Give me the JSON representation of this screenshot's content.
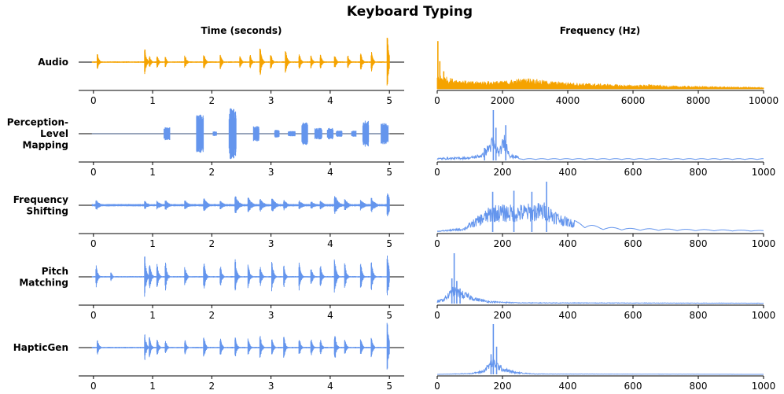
{
  "figure_title": "Keyboard Typing",
  "column_titles": [
    "Time (seconds)",
    "Frequency (Hz)"
  ],
  "chart_data": [
    {
      "type": "line",
      "panel": "waveform",
      "row": "Audio",
      "color": "#f5a300",
      "xlabel": "",
      "xlim": [
        -0.25,
        5.25
      ],
      "xticks": [
        0,
        1,
        2,
        3,
        4,
        5
      ],
      "ylim": [
        -1,
        1
      ],
      "clicks": [
        0.07,
        0.87,
        0.95,
        1.08,
        1.22,
        1.55,
        1.87,
        2.15,
        2.48,
        2.65,
        2.82,
        3.0,
        3.25,
        3.48,
        3.68,
        3.84,
        4.08,
        4.3,
        4.52,
        4.7,
        4.97
      ],
      "amps": [
        0.35,
        0.6,
        0.25,
        0.25,
        0.2,
        0.3,
        0.35,
        0.3,
        0.25,
        0.3,
        0.6,
        0.3,
        0.5,
        0.35,
        0.3,
        0.3,
        0.3,
        0.3,
        0.35,
        0.4,
        1.0
      ]
    },
    {
      "type": "line",
      "panel": "spectrum",
      "row": "Audio",
      "color": "#f5a300",
      "xlim": [
        0,
        10000
      ],
      "xticks": [
        0,
        2000,
        4000,
        6000,
        8000,
        10000
      ],
      "peaks": [
        {
          "x": 20,
          "h": 0.95
        },
        {
          "x": 80,
          "h": 0.55
        },
        {
          "x": 200,
          "h": 0.35
        }
      ],
      "profile": [
        [
          0,
          0.3
        ],
        [
          400,
          0.22
        ],
        [
          1000,
          0.15
        ],
        [
          2000,
          0.16
        ],
        [
          2800,
          0.22
        ],
        [
          3500,
          0.15
        ],
        [
          4000,
          0.13
        ],
        [
          5000,
          0.1
        ],
        [
          6000,
          0.07
        ],
        [
          6500,
          0.09
        ],
        [
          7000,
          0.06
        ],
        [
          8000,
          0.05
        ],
        [
          9000,
          0.04
        ],
        [
          10000,
          0.03
        ]
      ]
    },
    {
      "type": "line",
      "panel": "waveform",
      "row": "Perception-Level Mapping",
      "color": "#6495ed",
      "xlim": [
        -0.25,
        5.25
      ],
      "xticks": [
        0,
        1,
        2,
        3,
        4,
        5
      ],
      "ylim": [
        -1,
        1
      ],
      "bursts": [
        [
          1.24,
          0.1,
          0.25
        ],
        [
          1.8,
          0.12,
          0.75
        ],
        [
          2.35,
          0.12,
          1.0
        ],
        [
          2.75,
          0.1,
          0.3
        ],
        [
          2.05,
          0.06,
          0.1
        ],
        [
          3.1,
          0.08,
          0.15
        ],
        [
          3.35,
          0.12,
          0.1
        ],
        [
          3.57,
          0.1,
          0.45
        ],
        [
          3.8,
          0.12,
          0.22
        ],
        [
          4.0,
          0.1,
          0.22
        ],
        [
          4.15,
          0.1,
          0.12
        ],
        [
          4.4,
          0.08,
          0.12
        ],
        [
          4.6,
          0.1,
          0.5
        ],
        [
          4.92,
          0.12,
          0.42
        ]
      ]
    },
    {
      "type": "line",
      "panel": "spectrum",
      "row": "Perception-Level Mapping",
      "color": "#6495ed",
      "xlim": [
        0,
        1000
      ],
      "xticks": [
        0,
        200,
        400,
        600,
        800,
        1000
      ],
      "peaks": [
        {
          "x": 172,
          "h": 1.0
        },
        {
          "x": 180,
          "h": 0.65
        },
        {
          "x": 210,
          "h": 0.7
        },
        {
          "x": 145,
          "h": 0.25
        }
      ],
      "profile": [
        [
          0,
          0.05
        ],
        [
          100,
          0.07
        ],
        [
          140,
          0.15
        ],
        [
          170,
          0.5
        ],
        [
          190,
          0.2
        ],
        [
          205,
          0.55
        ],
        [
          225,
          0.12
        ],
        [
          300,
          0.05
        ],
        [
          500,
          0.03
        ],
        [
          1000,
          0.02
        ]
      ]
    },
    {
      "type": "line",
      "panel": "waveform",
      "row": "Frequency Shifting",
      "color": "#6495ed",
      "xlim": [
        -0.25,
        5.25
      ],
      "xticks": [
        0,
        1,
        2,
        3,
        4,
        5
      ],
      "ylim": [
        -1,
        1
      ],
      "clicks": [
        0.05,
        0.35,
        0.87,
        1.08,
        1.22,
        1.55,
        1.87,
        2.15,
        2.4,
        2.62,
        2.82,
        3.02,
        3.22,
        3.48,
        3.68,
        3.84,
        4.08,
        4.25,
        4.52,
        4.7,
        4.97
      ],
      "amps": [
        0.35,
        0.1,
        0.3,
        0.3,
        0.35,
        0.35,
        0.45,
        0.3,
        0.65,
        0.5,
        0.45,
        0.5,
        0.35,
        0.35,
        0.3,
        0.3,
        0.7,
        0.4,
        0.4,
        0.5,
        1.0
      ]
    },
    {
      "type": "line",
      "panel": "spectrum",
      "row": "Frequency Shifting",
      "color": "#6495ed",
      "xlim": [
        0,
        1000
      ],
      "xticks": [
        0,
        200,
        400,
        600,
        800,
        1000
      ],
      "peaks": [
        {
          "x": 170,
          "h": 0.8
        },
        {
          "x": 235,
          "h": 0.82
        },
        {
          "x": 335,
          "h": 1.0
        },
        {
          "x": 290,
          "h": 0.8
        }
      ],
      "profile": [
        [
          0,
          0.02
        ],
        [
          80,
          0.08
        ],
        [
          120,
          0.3
        ],
        [
          170,
          0.55
        ],
        [
          240,
          0.55
        ],
        [
          330,
          0.6
        ],
        [
          380,
          0.35
        ],
        [
          430,
          0.2
        ],
        [
          500,
          0.1
        ],
        [
          600,
          0.07
        ],
        [
          800,
          0.05
        ],
        [
          1000,
          0.03
        ]
      ]
    },
    {
      "type": "line",
      "panel": "waveform",
      "row": "Pitch Matching",
      "color": "#6495ed",
      "xlim": [
        -0.25,
        5.25
      ],
      "xticks": [
        0,
        1,
        2,
        3,
        4,
        5
      ],
      "ylim": [
        -1,
        1
      ],
      "clicks": [
        0.05,
        0.3,
        0.87,
        0.95,
        1.08,
        1.22,
        1.55,
        1.87,
        2.15,
        2.4,
        2.62,
        2.82,
        3.02,
        3.22,
        3.48,
        3.68,
        3.84,
        4.08,
        4.25,
        4.52,
        4.7,
        4.97
      ],
      "amps": [
        0.45,
        0.2,
        0.85,
        0.6,
        0.5,
        0.55,
        0.45,
        0.6,
        0.4,
        0.7,
        0.5,
        0.45,
        0.6,
        0.45,
        0.6,
        0.4,
        0.45,
        0.7,
        0.55,
        0.5,
        0.6,
        1.0
      ]
    },
    {
      "type": "line",
      "panel": "spectrum",
      "row": "Pitch Matching",
      "color": "#6495ed",
      "xlim": [
        0,
        1000
      ],
      "xticks": [
        0,
        200,
        400,
        600,
        800,
        1000
      ],
      "peaks": [
        {
          "x": 52,
          "h": 1.0
        },
        {
          "x": 45,
          "h": 0.5
        },
        {
          "x": 60,
          "h": 0.45
        },
        {
          "x": 70,
          "h": 0.3
        }
      ],
      "profile": [
        [
          0,
          0.05
        ],
        [
          20,
          0.12
        ],
        [
          50,
          0.35
        ],
        [
          80,
          0.25
        ],
        [
          120,
          0.12
        ],
        [
          160,
          0.05
        ],
        [
          250,
          0.02
        ],
        [
          1000,
          0.01
        ]
      ]
    },
    {
      "type": "line",
      "panel": "waveform",
      "row": "HapticGen",
      "color": "#6495ed",
      "xlim": [
        -0.25,
        5.25
      ],
      "xticks": [
        0,
        1,
        2,
        3,
        4,
        5
      ],
      "ylim": [
        -1,
        1
      ],
      "clicks": [
        0.07,
        0.87,
        0.95,
        1.08,
        1.22,
        1.55,
        1.87,
        2.15,
        2.4,
        2.62,
        2.82,
        3.02,
        3.22,
        3.48,
        3.68,
        3.84,
        4.08,
        4.25,
        4.52,
        4.7,
        4.97
      ],
      "amps": [
        0.35,
        0.55,
        0.4,
        0.35,
        0.3,
        0.3,
        0.45,
        0.35,
        0.4,
        0.35,
        0.5,
        0.35,
        0.45,
        0.4,
        0.35,
        0.3,
        0.55,
        0.35,
        0.35,
        0.4,
        1.0
      ]
    },
    {
      "type": "line",
      "panel": "spectrum",
      "row": "HapticGen",
      "color": "#6495ed",
      "xlim": [
        0,
        1000
      ],
      "xticks": [
        0,
        200,
        400,
        600,
        800,
        1000
      ],
      "peaks": [
        {
          "x": 172,
          "h": 1.0
        },
        {
          "x": 182,
          "h": 0.55
        },
        {
          "x": 165,
          "h": 0.4
        }
      ],
      "profile": [
        [
          0,
          0.0
        ],
        [
          100,
          0.02
        ],
        [
          140,
          0.08
        ],
        [
          170,
          0.35
        ],
        [
          200,
          0.15
        ],
        [
          240,
          0.05
        ],
        [
          300,
          0.01
        ],
        [
          1000,
          0.0
        ]
      ]
    }
  ],
  "rows": [
    {
      "label_lines": [
        "Audio"
      ]
    },
    {
      "label_lines": [
        "Perception-",
        "Level",
        "Mapping"
      ]
    },
    {
      "label_lines": [
        "Frequency",
        "Shifting"
      ]
    },
    {
      "label_lines": [
        "Pitch",
        "Matching"
      ]
    },
    {
      "label_lines": [
        "HapticGen"
      ]
    }
  ]
}
